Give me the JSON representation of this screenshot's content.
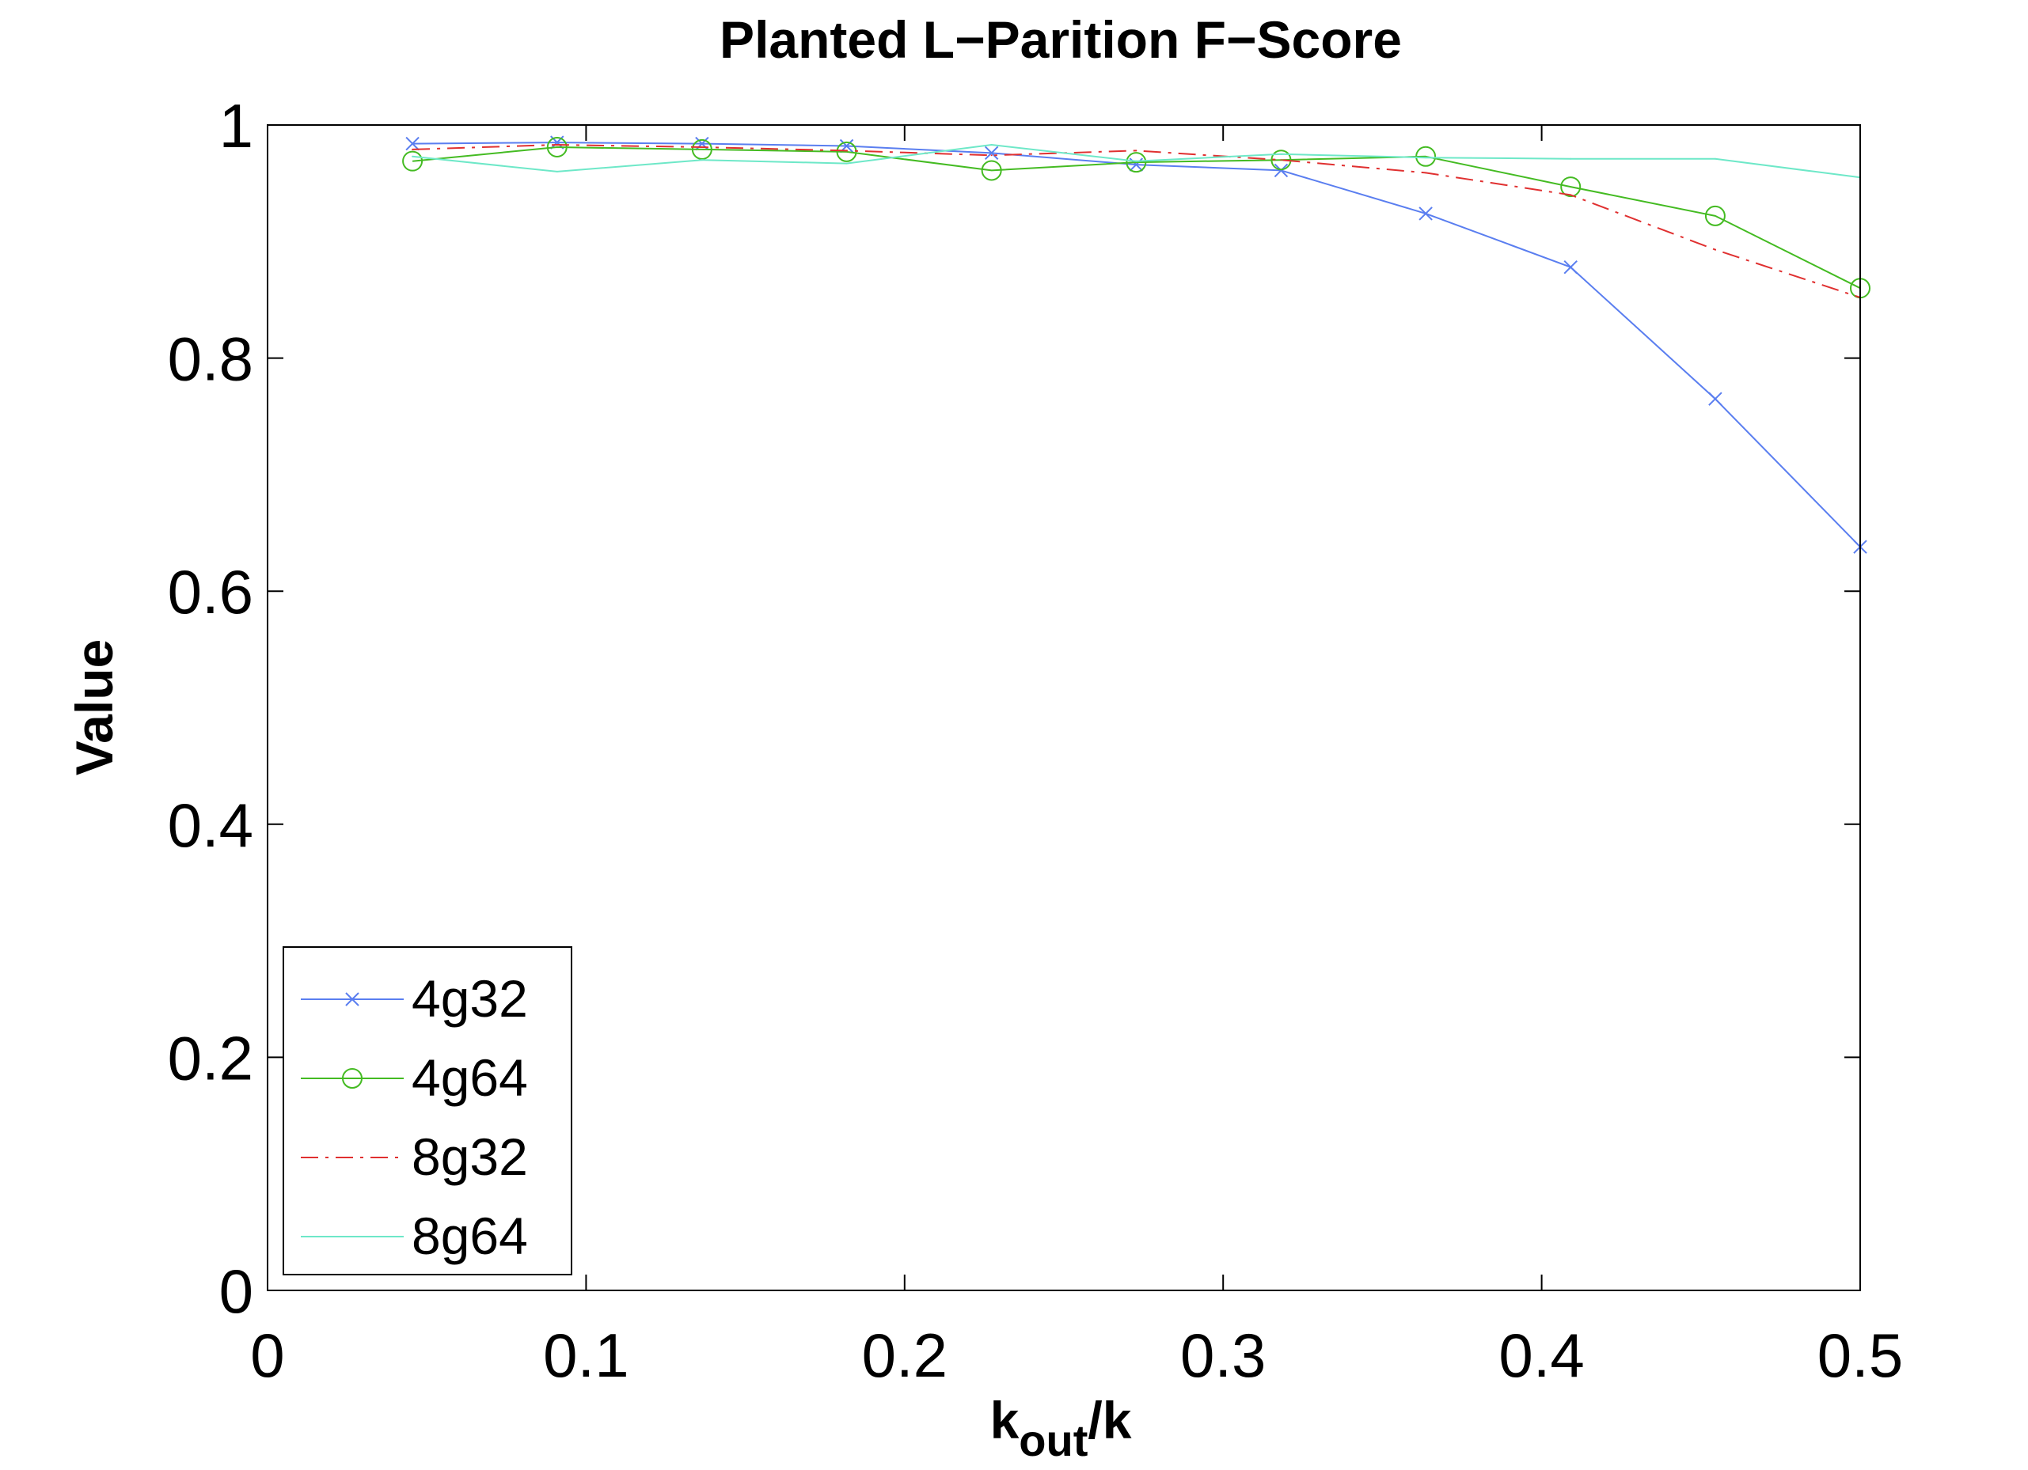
{
  "chart_data": {
    "type": "line",
    "title": "Planted L−Parition F−Score",
    "xlabel": {
      "main": "k",
      "sub": "out",
      "suffix": "/k"
    },
    "ylabel": "Value",
    "xlim": [
      0,
      0.5
    ],
    "ylim": [
      0,
      1
    ],
    "xticks": [
      0,
      0.1,
      0.2,
      0.3,
      0.4,
      0.5
    ],
    "xtick_labels": [
      "0",
      "0.1",
      "0.2",
      "0.3",
      "0.4",
      "0.5"
    ],
    "yticks": [
      0,
      0.2,
      0.4,
      0.6,
      0.8,
      1
    ],
    "ytick_labels": [
      "0",
      "0.2",
      "0.4",
      "0.6",
      "0.8",
      "1"
    ],
    "grid": false,
    "legend_position": "bottom-left",
    "x": [
      0.0455,
      0.0909,
      0.1364,
      0.1818,
      0.2273,
      0.2727,
      0.3182,
      0.3636,
      0.4091,
      0.4545,
      0.5
    ],
    "series": [
      {
        "name": "4g32",
        "color": "#5a7ef0",
        "dash": "",
        "marker": "x",
        "values": [
          0.984,
          0.985,
          0.984,
          0.982,
          0.976,
          0.966,
          0.961,
          0.924,
          0.878,
          0.765,
          0.638
        ]
      },
      {
        "name": "4g64",
        "color": "#44bb22",
        "dash": "",
        "marker": "o",
        "values": [
          0.969,
          0.981,
          0.979,
          0.977,
          0.961,
          0.968,
          0.97,
          0.973,
          0.947,
          0.922,
          0.86
        ]
      },
      {
        "name": "8g32",
        "color": "#e03030",
        "dash": "22 9 4 9",
        "marker": "none",
        "values": [
          0.979,
          0.983,
          0.981,
          0.978,
          0.974,
          0.978,
          0.97,
          0.959,
          0.94,
          0.893,
          0.852
        ]
      },
      {
        "name": "8g64",
        "color": "#6ee8c8",
        "dash": "",
        "marker": "none",
        "values": [
          0.973,
          0.96,
          0.97,
          0.967,
          0.983,
          0.969,
          0.975,
          0.972,
          0.971,
          0.971,
          0.955
        ]
      }
    ]
  }
}
